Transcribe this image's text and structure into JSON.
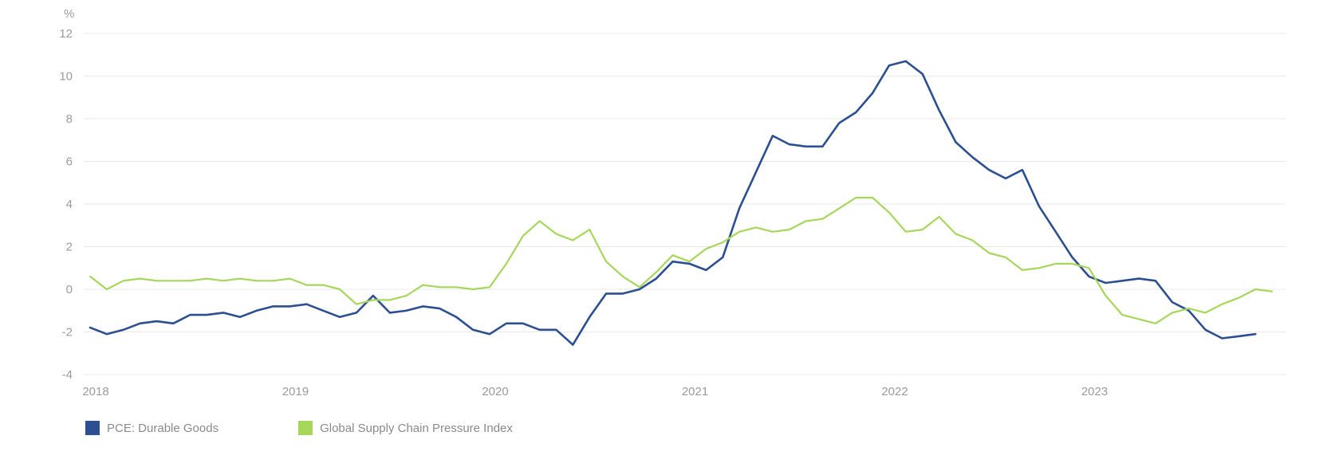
{
  "chart_data": {
    "type": "line",
    "unit_label": "%",
    "ylim": [
      -4,
      12
    ],
    "y_ticks": [
      "12",
      "10",
      "8",
      "6",
      "4",
      "2",
      "0",
      "-2",
      "-4"
    ],
    "x_ticks": [
      "2018",
      "2019",
      "2020",
      "2021",
      "2022",
      "2023"
    ],
    "grid": true,
    "legend_position": "bottom-left",
    "x": [
      "2018-01",
      "2018-02",
      "2018-03",
      "2018-04",
      "2018-05",
      "2018-06",
      "2018-07",
      "2018-08",
      "2018-09",
      "2018-10",
      "2018-11",
      "2018-12",
      "2019-01",
      "2019-02",
      "2019-03",
      "2019-04",
      "2019-05",
      "2019-06",
      "2019-07",
      "2019-08",
      "2019-09",
      "2019-10",
      "2019-11",
      "2019-12",
      "2020-01",
      "2020-02",
      "2020-03",
      "2020-04",
      "2020-05",
      "2020-06",
      "2020-07",
      "2020-08",
      "2020-09",
      "2020-10",
      "2020-11",
      "2020-12",
      "2021-01",
      "2021-02",
      "2021-03",
      "2021-04",
      "2021-05",
      "2021-06",
      "2021-07",
      "2021-08",
      "2021-09",
      "2021-10",
      "2021-11",
      "2021-12",
      "2022-01",
      "2022-02",
      "2022-03",
      "2022-04",
      "2022-05",
      "2022-06",
      "2022-07",
      "2022-08",
      "2022-09",
      "2022-10",
      "2022-11",
      "2022-12",
      "2023-01",
      "2023-02",
      "2023-03",
      "2023-04",
      "2023-05",
      "2023-06",
      "2023-07",
      "2023-08",
      "2023-09",
      "2023-10",
      "2023-11",
      "2023-12"
    ],
    "series": [
      {
        "name": "PCE: Durable Goods",
        "color": "#2c4f91",
        "values": [
          -1.8,
          -2.1,
          -1.9,
          -1.6,
          -1.5,
          -1.6,
          -1.2,
          -1.2,
          -1.1,
          -1.3,
          -1.0,
          -0.8,
          -0.8,
          -0.7,
          -1.0,
          -1.3,
          -1.1,
          -0.3,
          -1.1,
          -1.0,
          -0.8,
          -0.9,
          -1.3,
          -1.9,
          -2.1,
          -1.6,
          -1.6,
          -1.9,
          -1.9,
          -2.6,
          -1.3,
          -0.2,
          -0.2,
          0.0,
          0.5,
          1.3,
          1.2,
          0.9,
          1.5,
          3.8,
          5.5,
          7.2,
          6.8,
          6.7,
          6.7,
          7.8,
          8.3,
          9.2,
          10.5,
          10.7,
          10.1,
          8.4,
          6.9,
          6.2,
          5.6,
          5.2,
          5.6,
          3.9,
          2.7,
          1.5,
          0.6,
          0.3,
          0.4,
          0.5,
          0.4,
          -0.6,
          -1.0,
          -1.9,
          -2.3,
          -2.2,
          -2.1,
          null
        ],
        "line_width": 2.6
      },
      {
        "name": "Global Supply Chain Pressure Index",
        "color": "#a6d65a",
        "values": [
          0.6,
          0.0,
          0.4,
          0.5,
          0.4,
          0.4,
          0.4,
          0.5,
          0.4,
          0.5,
          0.4,
          0.4,
          0.5,
          0.2,
          0.2,
          0.0,
          -0.7,
          -0.5,
          -0.5,
          -0.3,
          0.2,
          0.1,
          0.1,
          0.0,
          0.1,
          1.2,
          2.5,
          3.2,
          2.6,
          2.3,
          2.8,
          1.3,
          0.6,
          0.1,
          0.8,
          1.6,
          1.3,
          1.9,
          2.2,
          2.7,
          2.9,
          2.7,
          2.8,
          3.2,
          3.3,
          3.8,
          4.3,
          4.3,
          3.6,
          2.7,
          2.8,
          3.4,
          2.6,
          2.3,
          1.7,
          1.5,
          0.9,
          1.0,
          1.2,
          1.2,
          1.0,
          -0.3,
          -1.2,
          -1.4,
          -1.6,
          -1.1,
          -0.9,
          -1.1,
          -0.7,
          -0.4,
          0.0,
          -0.1
        ],
        "line_width": 2.2
      }
    ]
  }
}
